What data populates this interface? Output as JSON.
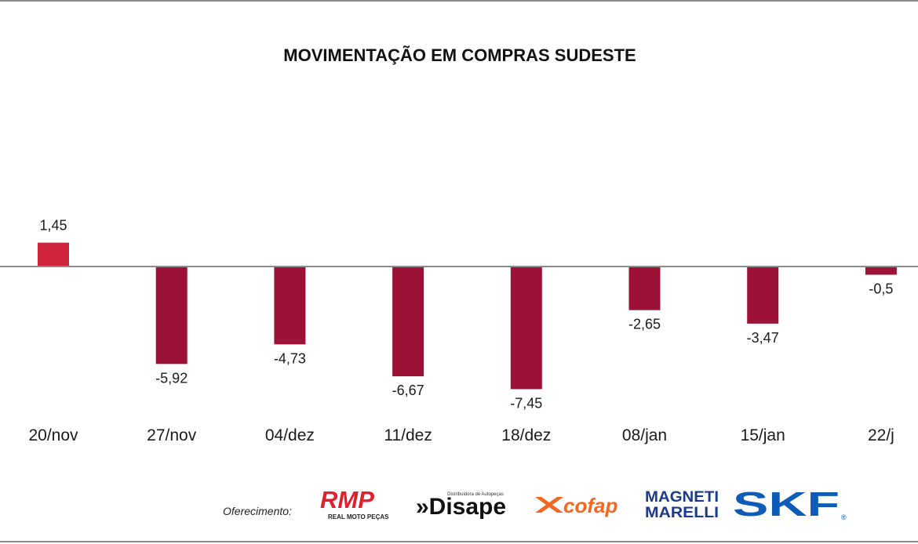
{
  "chart_data": {
    "type": "bar",
    "title": "MOVIMENTAÇÃO EM COMPRAS SUDESTE",
    "categories": [
      "20/nov",
      "27/nov",
      "04/dez",
      "11/dez",
      "18/dez",
      "08/jan",
      "15/jan",
      "22/j"
    ],
    "values": [
      1.45,
      -5.92,
      -4.73,
      -6.67,
      -7.45,
      -2.65,
      -3.47,
      -0.5
    ],
    "value_labels": [
      "1,45",
      "-5,92",
      "-4,73",
      "-6,67",
      "-7,45",
      "-2,65",
      "-3,47",
      "-0,5"
    ],
    "xlabel": "",
    "ylabel": "",
    "grid": false,
    "colors": {
      "positive": "#d0233c",
      "negative": "#9b1236",
      "axis": "#8c8c8c"
    }
  },
  "sponsors": {
    "label": "Oferecimento:",
    "logos": [
      {
        "name": "RMP",
        "subtitle": "REAL MOTO PEÇAS",
        "color": "#e0202c"
      },
      {
        "name": "»Disape",
        "subtitle": "Distribuidora de Autopeças",
        "color": "#111111"
      },
      {
        "name": "cofap",
        "color": "#f26722"
      },
      {
        "name": "MAGNETI MARELLI",
        "line1": "MAGNETI",
        "line2": "MARELLI",
        "color": "#1b3a8a"
      },
      {
        "name": "SKF",
        "mark": "®",
        "color": "#0f5cb8"
      }
    ]
  }
}
